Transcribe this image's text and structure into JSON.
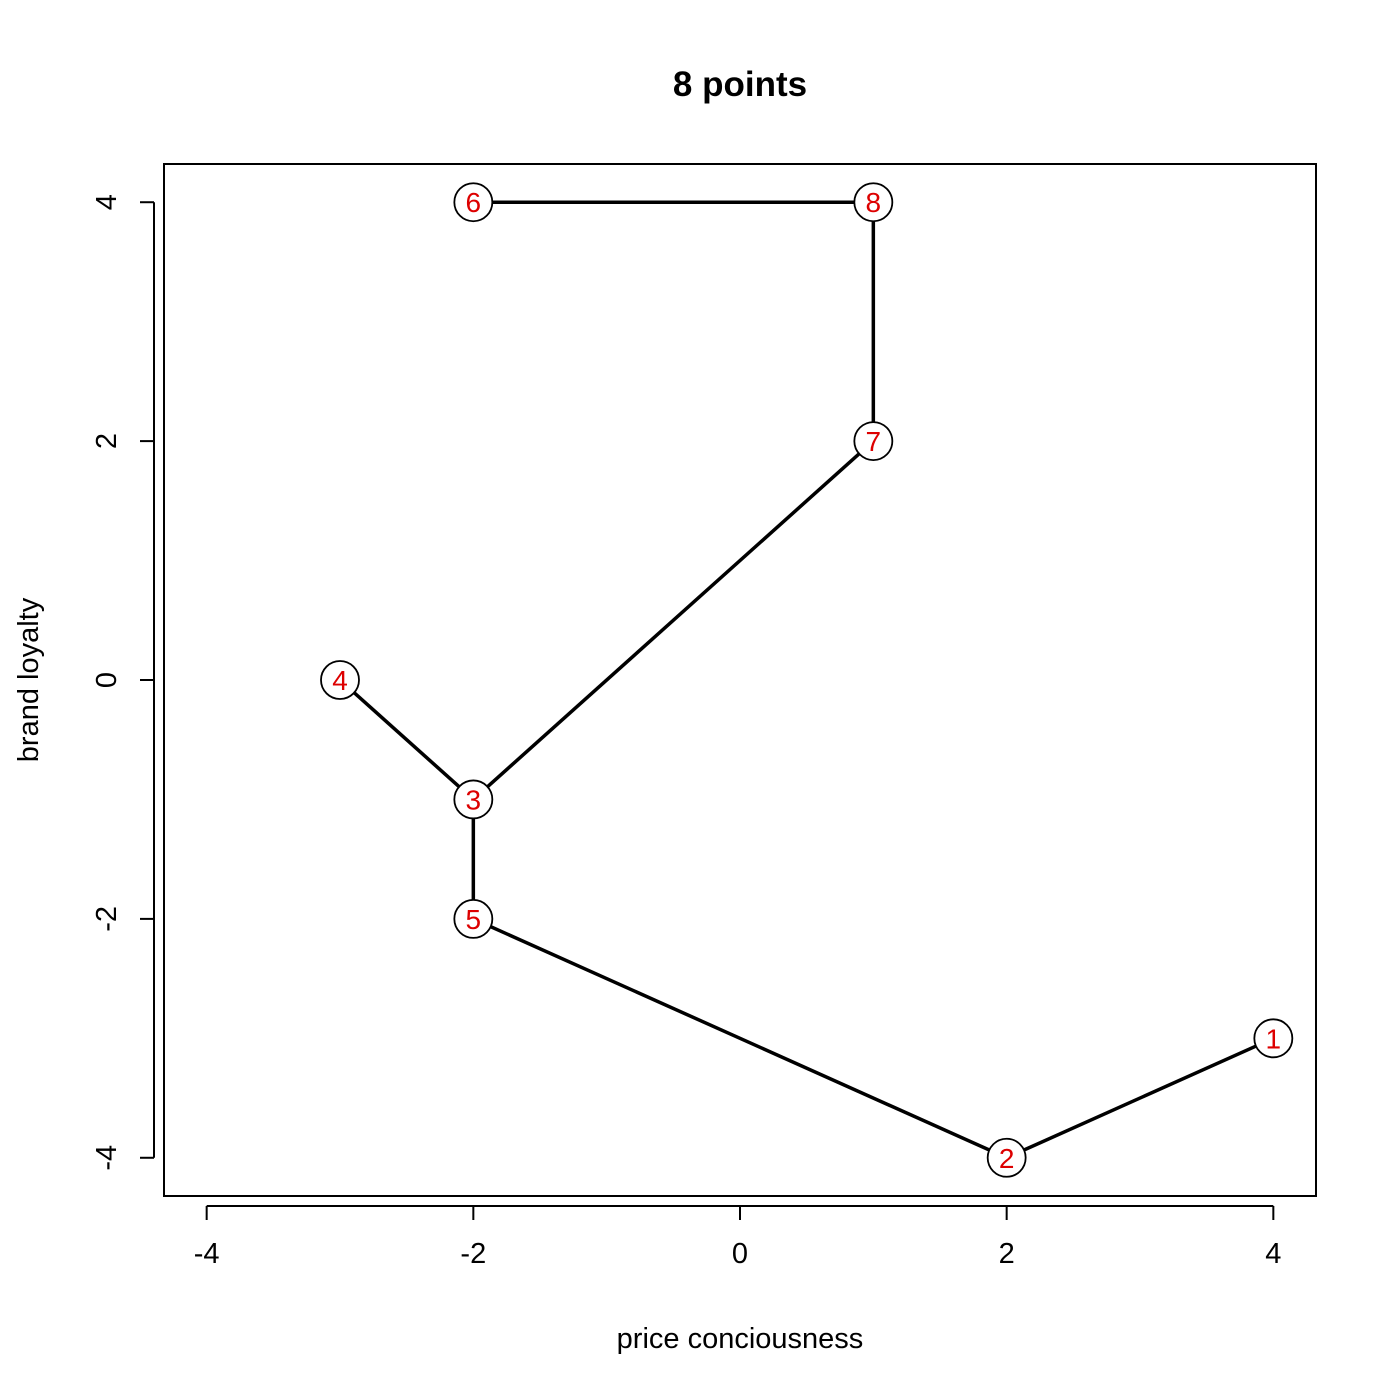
{
  "chart_data": {
    "type": "scatter",
    "title": "8 points",
    "xlabel": "price conciousness",
    "ylabel": "brand loyalty",
    "xlim": [
      -4.32,
      4.32
    ],
    "ylim": [
      -4.32,
      4.32
    ],
    "xticks": [
      -4,
      -2,
      0,
      2,
      4
    ],
    "yticks": [
      -4,
      -2,
      0,
      2,
      4
    ],
    "grid": false,
    "points": [
      {
        "label": "1",
        "x": 4,
        "y": -3
      },
      {
        "label": "2",
        "x": 2,
        "y": -4
      },
      {
        "label": "3",
        "x": -2,
        "y": -1
      },
      {
        "label": "4",
        "x": -3,
        "y": 0
      },
      {
        "label": "5",
        "x": -2,
        "y": -2
      },
      {
        "label": "6",
        "x": -2,
        "y": 4
      },
      {
        "label": "7",
        "x": 1,
        "y": 2
      },
      {
        "label": "8",
        "x": 1,
        "y": 4
      }
    ],
    "edges": [
      [
        "1",
        "2"
      ],
      [
        "2",
        "5"
      ],
      [
        "5",
        "3"
      ],
      [
        "3",
        "4"
      ],
      [
        "3",
        "7"
      ],
      [
        "7",
        "8"
      ],
      [
        "8",
        "6"
      ]
    ],
    "colors": {
      "point_label": "#dd0000",
      "line": "#000000",
      "point_fill": "#ffffff"
    }
  }
}
